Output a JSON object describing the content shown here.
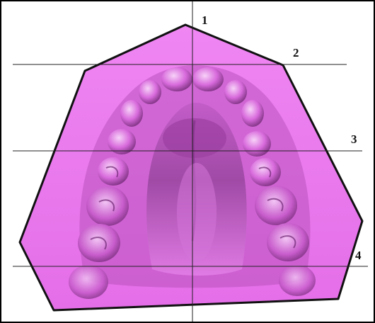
{
  "figure": {
    "palette": {
      "background": "#ffffff",
      "border": "#000000",
      "cast_fill": "#ec7af0",
      "cast_outline": "#111111",
      "teeth_highlight": "#f4c3f6",
      "teeth_shadow": "#7a2f7e",
      "reference_line": "#222222"
    },
    "reference_labels": [
      {
        "id": "1",
        "text": "1"
      },
      {
        "id": "2",
        "text": "2"
      },
      {
        "id": "3",
        "text": "3"
      },
      {
        "id": "4",
        "text": "4"
      }
    ]
  }
}
